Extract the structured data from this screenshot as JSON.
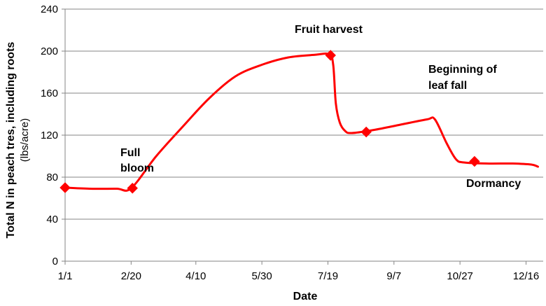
{
  "chart_data": {
    "type": "line",
    "xlabel": "Date",
    "ylabel": "Total N in peach tres, including roots",
    "ylabel_unit": "(lbs/acre)",
    "x_tick_labels": [
      "1/1",
      "2/20",
      "4/10",
      "5/30",
      "7/19",
      "9/7",
      "10/27",
      "12/16"
    ],
    "x_tick_days": [
      1,
      51,
      100,
      150,
      200,
      250,
      300,
      350
    ],
    "xlim_days": [
      1,
      363
    ],
    "ylim": [
      0,
      240
    ],
    "y_ticks": [
      0,
      40,
      80,
      120,
      160,
      200,
      240
    ],
    "grid": "horizontal",
    "series": [
      {
        "color": "#ff0000",
        "curve": [
          [
            1,
            70
          ],
          [
            20,
            69
          ],
          [
            40,
            69
          ],
          [
            51,
            69.5
          ],
          [
            70,
            100
          ],
          [
            90,
            128
          ],
          [
            110,
            155
          ],
          [
            130,
            176
          ],
          [
            150,
            187
          ],
          [
            170,
            194
          ],
          [
            190,
            196.5
          ],
          [
            201,
            197
          ],
          [
            204,
            187
          ],
          [
            206,
            150
          ],
          [
            209,
            132
          ],
          [
            213,
            124
          ],
          [
            218,
            122
          ],
          [
            235,
            125
          ],
          [
            255,
            130
          ],
          [
            275,
            135
          ],
          [
            281,
            135
          ],
          [
            290,
            112
          ],
          [
            297,
            97
          ],
          [
            303,
            94
          ],
          [
            320,
            93
          ],
          [
            340,
            93
          ],
          [
            354,
            92
          ],
          [
            359,
            90
          ]
        ],
        "points": [
          {
            "date": "1/1",
            "day": 1,
            "value": 70
          },
          {
            "date": "3/1",
            "day": 52,
            "value": 69.5
          },
          {
            "date": "7/21",
            "day": 202,
            "value": 196
          },
          {
            "date": "8/17",
            "day": 229,
            "value": 123
          },
          {
            "date": "11/7",
            "day": 311,
            "value": 95
          }
        ]
      }
    ],
    "annotations": [
      {
        "id": "full-bloom",
        "lines": [
          "Full",
          "bloom"
        ]
      },
      {
        "id": "fruit-harvest",
        "lines": [
          "Fruit harvest"
        ]
      },
      {
        "id": "leaf-fall",
        "lines": [
          "Beginning of",
          "leaf fall"
        ]
      },
      {
        "id": "dormancy",
        "lines": [
          "Dormancy"
        ]
      }
    ]
  }
}
